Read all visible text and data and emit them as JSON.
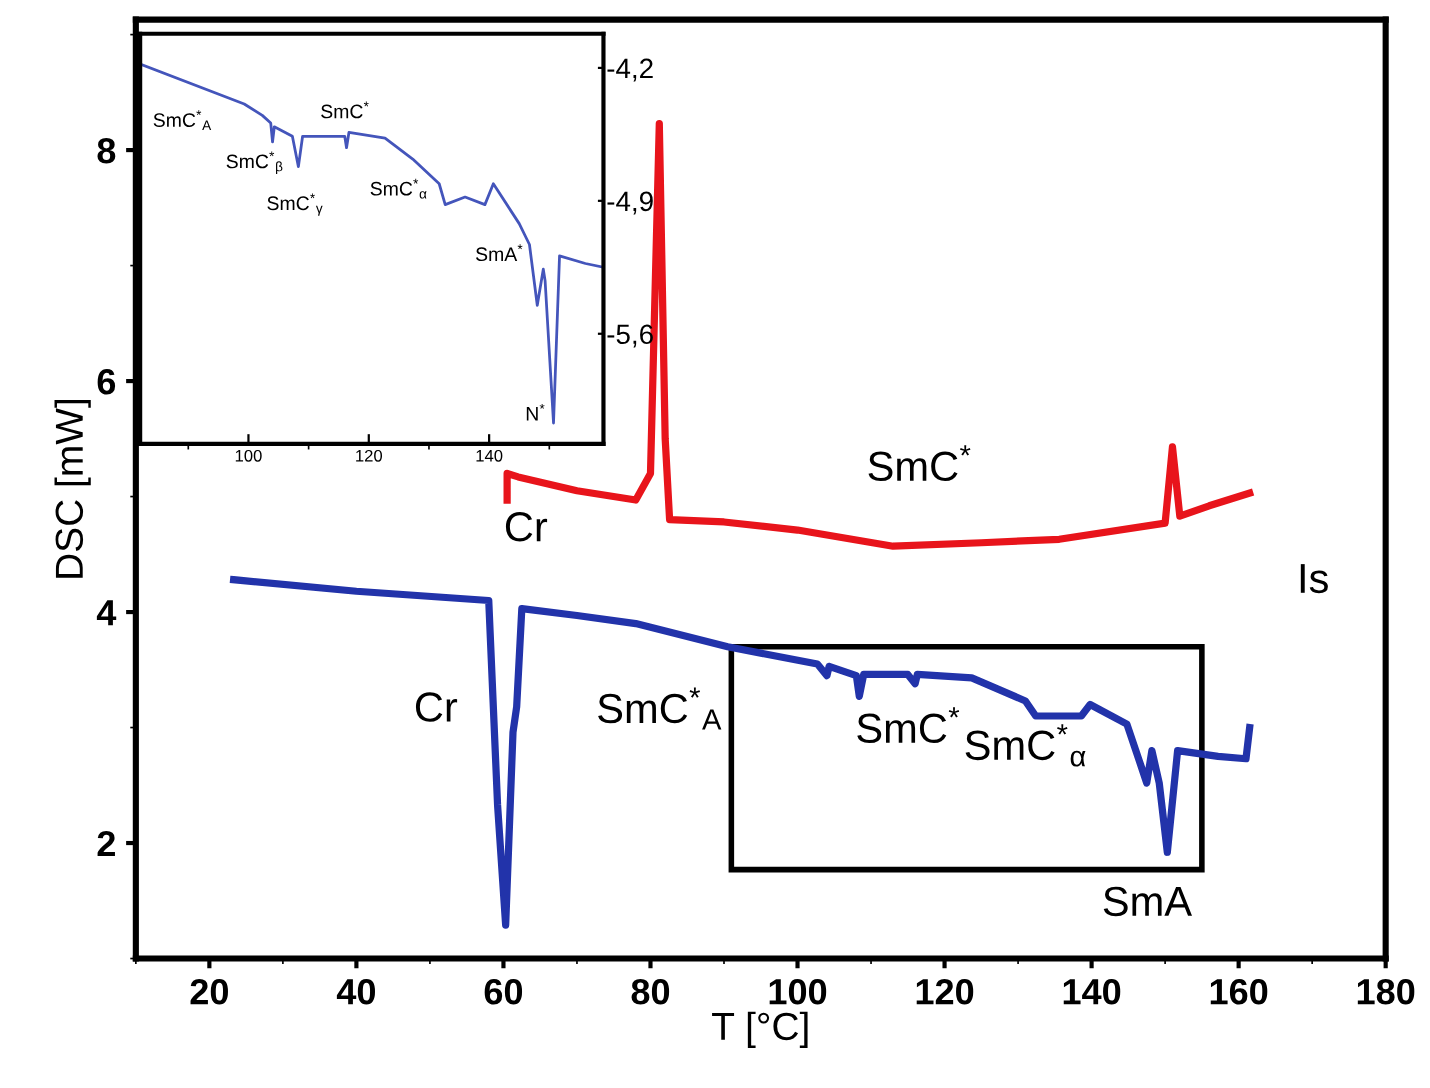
{
  "chart_data": [
    {
      "type": "line",
      "xlabel": "T [°C]",
      "ylabel": "DSC [mW]",
      "xlim": [
        10,
        180
      ],
      "xticks": [
        20,
        40,
        60,
        80,
        100,
        120,
        140,
        160,
        180
      ],
      "ylim": [
        1,
        9.13
      ],
      "yticks": [
        2,
        4,
        6,
        8
      ],
      "grid": false,
      "legend": false,
      "marker": "none",
      "line_style": "solid",
      "series": [
        {
          "color": "#e8141b",
          "x": [
            60.5,
            60.5,
            62,
            70,
            78,
            80,
            81.2,
            82,
            82.6,
            90,
            100,
            113,
            125,
            135.6,
            150,
            151,
            152,
            156,
            161.5
          ],
          "values": [
            4.97,
            5.2,
            5.17,
            5.05,
            4.97,
            5.2,
            8.23,
            5.5,
            4.8,
            4.78,
            4.71,
            4.57,
            4.6,
            4.63,
            4.77,
            5.43,
            4.83,
            4.92,
            5.03
          ]
        },
        {
          "color": "#2233aa",
          "x": [
            23.3,
            40,
            58,
            59.2,
            60.3,
            61.3,
            61.8,
            62.5,
            70,
            78,
            90.5,
            102.7,
            104,
            104.3,
            108,
            108.4,
            109,
            115,
            116,
            116.3,
            123.7,
            131,
            132.4,
            138.6,
            139.8,
            144.8,
            146.5,
            147.5,
            148.2,
            149.2,
            150.3,
            151.7,
            157.2,
            161,
            161.5
          ],
          "values": [
            4.28,
            4.18,
            4.1,
            2.33,
            1.29,
            2.96,
            3.18,
            4.03,
            3.97,
            3.9,
            3.7,
            3.55,
            3.45,
            3.53,
            3.45,
            3.27,
            3.46,
            3.46,
            3.38,
            3.46,
            3.43,
            3.23,
            3.1,
            3.1,
            3.2,
            3.03,
            2.71,
            2.52,
            2.8,
            2.52,
            1.92,
            2.8,
            2.75,
            2.73,
            3.0
          ]
        }
      ],
      "annotations": [
        "Cr",
        "SmC$^{*}$",
        "Is",
        "Cr",
        "SmC$^{*}$$_{A}$",
        "SmC$^{*}$",
        "SmC$^{*}$$_{α}$",
        "SmA"
      ]
    },
    {
      "type": "line",
      "xlim": [
        82,
        159
      ],
      "xticks": [
        100,
        120,
        140
      ],
      "ylim": [
        -6.18,
        -4.02
      ],
      "yticks": [
        {
          "value": -4.2,
          "label": "-4,2"
        },
        {
          "value": -4.9,
          "label": "-4,9"
        },
        {
          "value": -5.6,
          "label": "-5,6"
        }
      ],
      "grid": false,
      "legend": false,
      "marker": "none",
      "line_style": "solid",
      "series": [
        {
          "color": "#4455bb",
          "x": [
            82,
            99.3,
            102.3,
            103.7,
            104,
            104.3,
            107.3,
            108.3,
            109,
            116,
            116.3,
            116.7,
            122.7,
            127.3,
            131.7,
            132.7,
            136,
            139.3,
            140.7,
            145,
            146.7,
            148,
            149,
            149.3,
            150.7,
            151.7,
            156,
            159
          ],
          "values": [
            -4.18,
            -4.39,
            -4.45,
            -4.49,
            -4.59,
            -4.51,
            -4.56,
            -4.72,
            -4.56,
            -4.56,
            -4.62,
            -4.54,
            -4.57,
            -4.68,
            -4.81,
            -4.92,
            -4.88,
            -4.92,
            -4.81,
            -5.02,
            -5.13,
            -5.45,
            -5.26,
            -5.32,
            -6.07,
            -5.19,
            -5.23,
            -5.25
          ]
        }
      ],
      "annotations": [
        "SmC$^{*}$$_{A}$",
        "SmC$^{*}$$_{β}$",
        "SmC$^{*}$$_{γ}$",
        "SmC$^{*}$",
        "SmC$^{*}$$_{α}$",
        "SmA$^{*}$",
        "N$^{*}$"
      ]
    }
  ]
}
